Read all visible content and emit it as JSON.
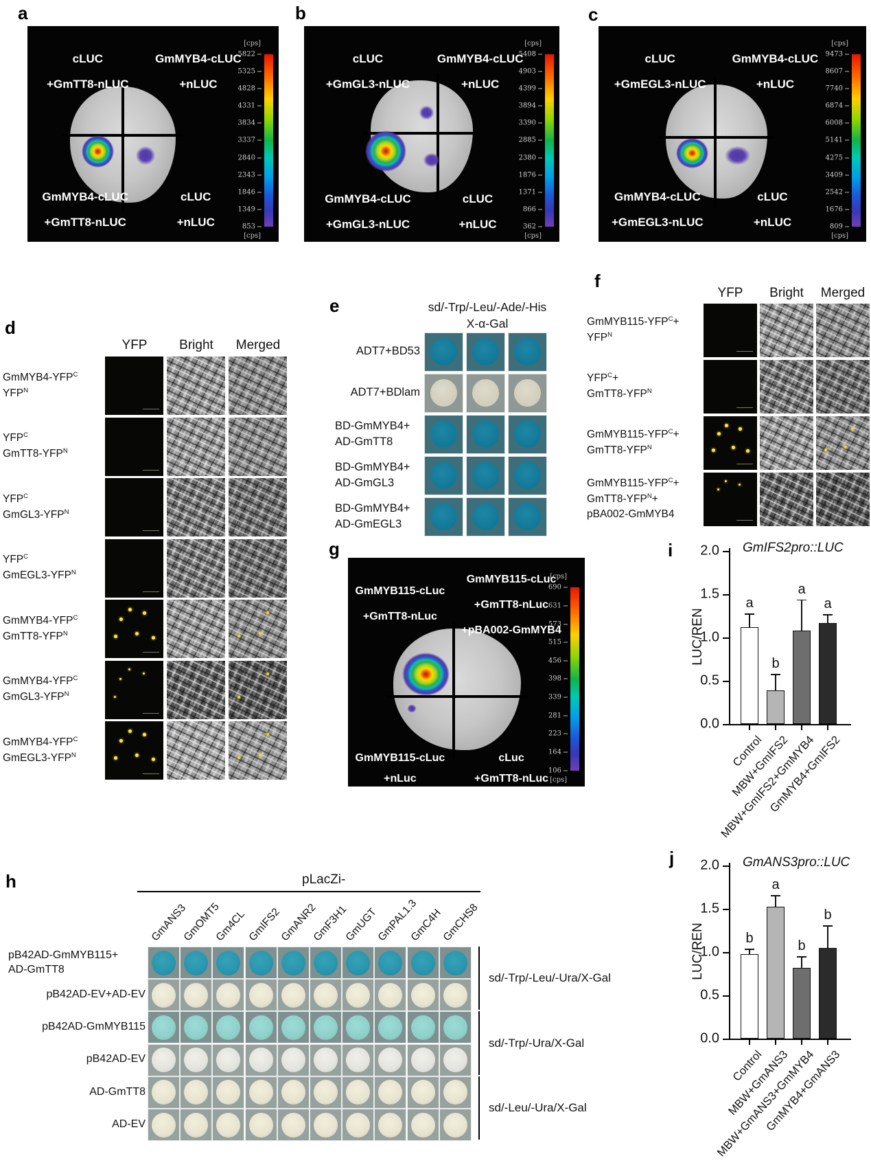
{
  "colors": {
    "accent_hot": "#e81600",
    "accent_purple": "#5a42b2",
    "yfp_dot": "#ffe93c",
    "colony_blue": "#1f86a5",
    "colony_cream": "#e7e3d1",
    "colony_gray_white": "#dedbcb",
    "colony_teal_strong": "#2a96ad",
    "colony_teal_light": "#8fd0ca",
    "colony_white": "#e4e4df",
    "plate_teal_bg": "#3f6e7b",
    "plate_gray_bg": "#8f9894",
    "grid_teal_bg": "#7f9090",
    "grid_gray_bg": "#97a19e"
  },
  "panels": {
    "a": {
      "label": "a",
      "quadrants": {
        "tl": [
          "cLUC",
          "+GmTT8-nLUC"
        ],
        "tr": [
          "GmMYB4-cLUC",
          "+nLUC"
        ],
        "bl": [
          "GmMYB4-cLUC",
          "+GmTT8-nLUC"
        ],
        "br": [
          "cLUC",
          "+nLUC"
        ]
      },
      "scale": {
        "unit": "[cps]",
        "ticks": [
          "5822",
          "5325",
          "4828",
          "4331",
          "3834",
          "3337",
          "2840",
          "2343",
          "1846",
          "1349",
          "853"
        ]
      }
    },
    "b": {
      "label": "b",
      "quadrants": {
        "tl": [
          "cLUC",
          "+GmGL3-nLUC"
        ],
        "tr": [
          "GmMYB4-cLUC",
          "+nLUC"
        ],
        "bl": [
          "GmMYB4-cLUC",
          "+GmGL3-nLUC"
        ],
        "br": [
          "cLUC",
          "+nLUC"
        ]
      },
      "scale": {
        "unit": "[cps]",
        "ticks": [
          "5408",
          "4903",
          "4399",
          "3894",
          "3390",
          "2885",
          "2380",
          "1876",
          "1371",
          "866",
          "362"
        ]
      }
    },
    "c": {
      "label": "c",
      "quadrants": {
        "tl": [
          "cLUC",
          "+GmEGL3-nLUC"
        ],
        "tr": [
          "GmMYB4-cLUC",
          "+nLUC"
        ],
        "bl": [
          "GmMYB4-cLUC",
          "+GmEGL3-nLUC"
        ],
        "br": [
          "cLUC",
          "+nLUC"
        ]
      },
      "scale": {
        "unit": "[cps]",
        "ticks": [
          "9473",
          "8607",
          "7740",
          "6874",
          "6008",
          "5141",
          "4275",
          "3409",
          "2542",
          "1676",
          "809"
        ]
      }
    },
    "d": {
      "label": "d",
      "columns": [
        "YFP",
        "Bright",
        "Merged"
      ],
      "rows": [
        {
          "lines": [
            "GmMYB4-YFP^C",
            "YFP^N"
          ],
          "yfp_dots": 0,
          "merged_dots": 0,
          "faint": false
        },
        {
          "lines": [
            "YFP^C",
            "GmTT8-YFP^N"
          ],
          "yfp_dots": 0,
          "merged_dots": 0,
          "faint": false
        },
        {
          "lines": [
            "YFP^C",
            "GmGL3-YFP^N"
          ],
          "yfp_dots": 0,
          "merged_dots": 0,
          "faint": false
        },
        {
          "lines": [
            "YFP^C",
            "GmEGL3-YFP^N"
          ],
          "yfp_dots": 0,
          "merged_dots": 0,
          "faint": false
        },
        {
          "lines": [
            "GmMYB4-YFP^C",
            "GmTT8-YFP^N"
          ],
          "yfp_dots": 6,
          "merged_dots": 3,
          "faint": false
        },
        {
          "lines": [
            "GmMYB4-YFP^C",
            "GmGL3-YFP^N"
          ],
          "yfp_dots": 4,
          "merged_dots": 2,
          "faint": true
        },
        {
          "lines": [
            "GmMYB4-YFP^C",
            "GmEGL3-YFP^N"
          ],
          "yfp_dots": 6,
          "merged_dots": 3,
          "faint": false
        }
      ]
    },
    "e": {
      "label": "e",
      "header": [
        "sd/-Trp/-Leu/-Ade/-His",
        "X-α-Gal"
      ],
      "rows": [
        {
          "label": [
            "ADT7+BD53"
          ],
          "colony": "blue"
        },
        {
          "label": [
            "ADT7+BDlam"
          ],
          "colony": "gray_white"
        },
        {
          "label": [
            "BD-GmMYB4+",
            "AD-GmTT8"
          ],
          "colony": "blue"
        },
        {
          "label": [
            "BD-GmMYB4+",
            "AD-GmGL3"
          ],
          "colony": "blue"
        },
        {
          "label": [
            "BD-GmMYB4+",
            "AD-GmEGL3"
          ],
          "colony": "blue"
        }
      ]
    },
    "f": {
      "label": "f",
      "columns": [
        "YFP",
        "Bright",
        "Merged"
      ],
      "rows": [
        {
          "lines": [
            "GmMYB115-YFP^C+",
            "YFP^N"
          ],
          "yfp_dots": 0,
          "merged_dots": 0,
          "faint": false
        },
        {
          "lines": [
            "YFP^C+",
            "GmTT8-YFP^N"
          ],
          "yfp_dots": 0,
          "merged_dots": 0,
          "faint": false
        },
        {
          "lines": [
            "GmMYB115-YFP^C+",
            "GmTT8-YFP^N"
          ],
          "yfp_dots": 6,
          "merged_dots": 3,
          "faint": false
        },
        {
          "lines": [
            "GmMYB115-YFP^C+",
            "GmTT8-YFP^N+",
            "pBA002-GmMYB4"
          ],
          "yfp_dots": 3,
          "merged_dots": 0,
          "faint": true
        }
      ]
    },
    "g": {
      "label": "g",
      "quadrants": {
        "tl": [
          "GmMYB115-cLuc",
          "+GmTT8-nLuc"
        ],
        "tr": [
          "GmMYB115-cLuc",
          "+GmTT8-nLuc",
          "+pBA002-GmMYB4"
        ],
        "bl": [
          "GmMYB115-cLuc",
          "+nLuc"
        ],
        "br": [
          "cLuc",
          "+GmTT8-nLuc"
        ]
      },
      "scale": {
        "unit": "[cps]",
        "ticks": [
          "690",
          "631",
          "573",
          "515",
          "456",
          "398",
          "339",
          "281",
          "223",
          "164",
          "106"
        ]
      }
    },
    "h": {
      "label": "h",
      "header": "pLacZi-",
      "columns": [
        "GmANS3",
        "GmOMT5",
        "Gm4CL",
        "GmIFS2",
        "GmANR2",
        "GmF3H1",
        "GmUGT",
        "GmPAL1.3",
        "GmC4H",
        "GmCHS8"
      ],
      "rows": [
        {
          "label": [
            "pB42AD-GmMYB115+",
            "AD-GmTT8"
          ],
          "colony": "teal_strong"
        },
        {
          "label": [
            "pB42AD-EV+AD-EV"
          ],
          "colony": "cream"
        },
        {
          "label": [
            "pB42AD-GmMYB115"
          ],
          "colony": "teal_light"
        },
        {
          "label": [
            "pB42AD-EV"
          ],
          "colony": "white"
        },
        {
          "label": [
            "AD-GmTT8"
          ],
          "colony": "cream"
        },
        {
          "label": [
            "AD-EV"
          ],
          "colony": "cream"
        }
      ],
      "groups": [
        {
          "label": "sd/-Trp/-Leu/-Ura/X-Gal",
          "rows": [
            0,
            1
          ]
        },
        {
          "label": "sd/-Trp/-Ura/X-Gal",
          "rows": [
            2,
            3
          ]
        },
        {
          "label": "sd/-Leu/-Ura/X-Gal",
          "rows": [
            4,
            5
          ]
        }
      ]
    }
  },
  "chart_data": [
    {
      "id": "i",
      "type": "bar",
      "title": "GmIFS2pro::LUC",
      "ylabel": "LUC/REN",
      "ylim": [
        0,
        2.0
      ],
      "yticks": [
        "0.0",
        "0.5",
        "1.0",
        "1.5",
        "2.0"
      ],
      "categories": [
        "Control",
        "MBW+GmIFS2",
        "MBW+GmIFS2+GmMYB4",
        "GmMYB4+GmIFS2"
      ],
      "values": [
        1.12,
        0.39,
        1.08,
        1.17
      ],
      "errors": [
        0.16,
        0.19,
        0.36,
        0.1
      ],
      "letters": [
        "a",
        "b",
        "a",
        "a"
      ],
      "bar_colors": [
        "#ffffff",
        "#b5b5b5",
        "#6e6e6e",
        "#2b2b2b"
      ],
      "legend": null,
      "grid": false
    },
    {
      "id": "j",
      "type": "bar",
      "title": "GmANS3pro::LUC",
      "ylabel": "LUC/REN",
      "ylim": [
        0,
        2.0
      ],
      "yticks": [
        "0.0",
        "0.5",
        "1.0",
        "1.5",
        "2.0"
      ],
      "categories": [
        "Control",
        "MBW+GmANS3",
        "MBW+GmANS3+GmMYB4",
        "GmMYB4+GmANS3"
      ],
      "values": [
        0.98,
        1.52,
        0.82,
        1.05
      ],
      "errors": [
        0.06,
        0.14,
        0.13,
        0.26
      ],
      "letters": [
        "b",
        "a",
        "b",
        "b"
      ],
      "bar_colors": [
        "#ffffff",
        "#b5b5b5",
        "#6e6e6e",
        "#2b2b2b"
      ],
      "legend": null,
      "grid": false
    }
  ]
}
